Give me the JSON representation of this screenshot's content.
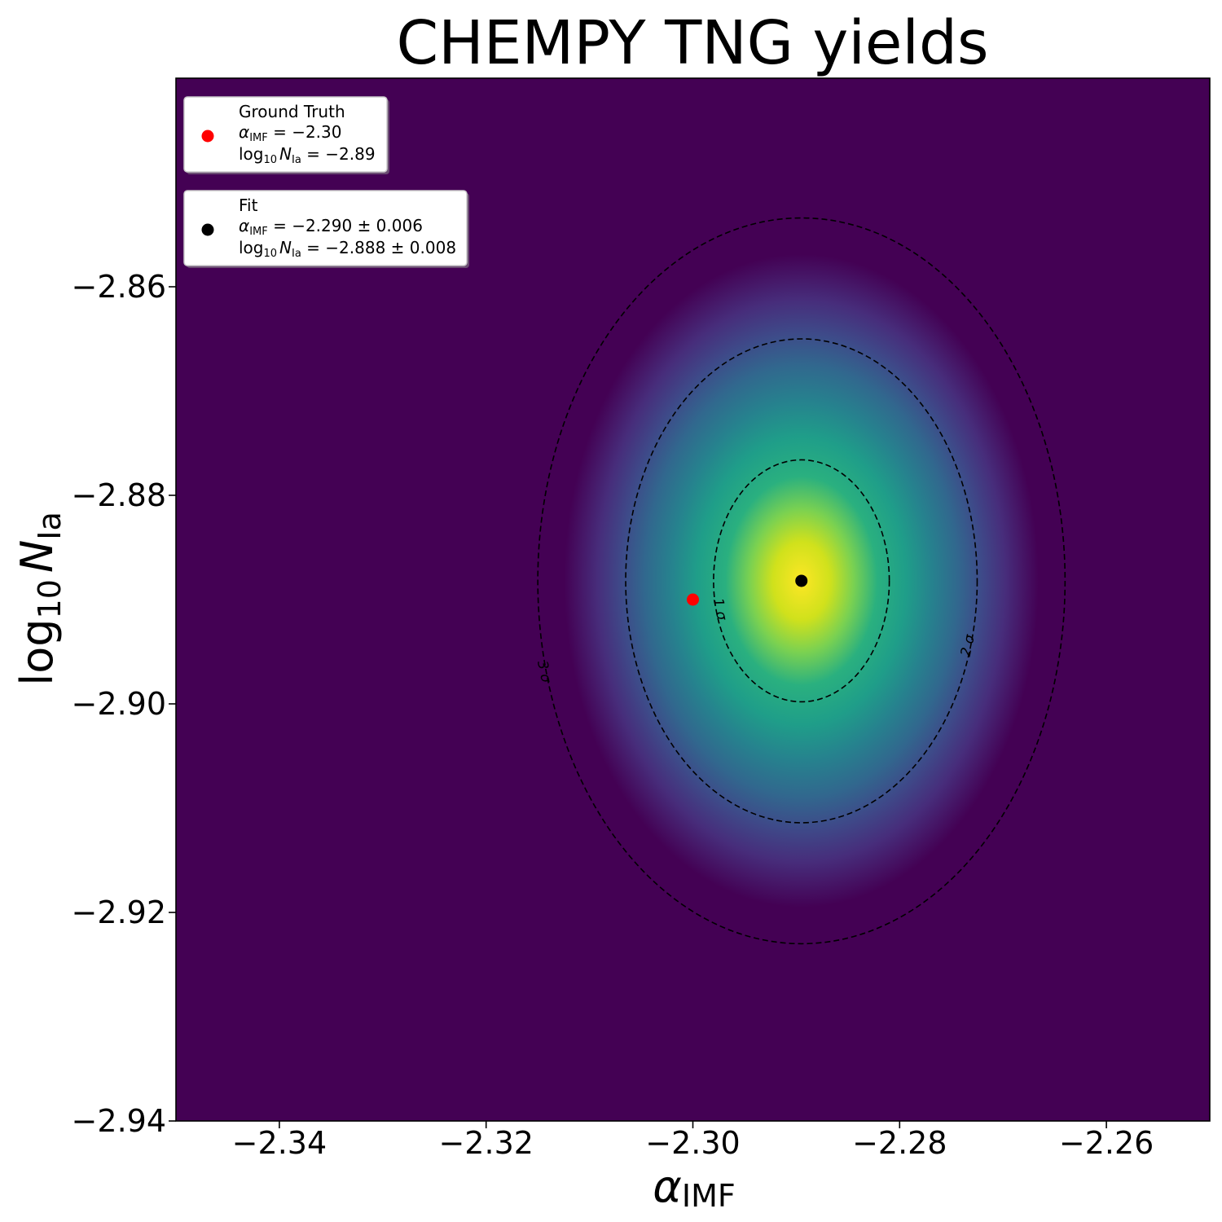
{
  "chart_data": {
    "type": "heatmap",
    "title": "CHEMPY TNG yields",
    "xlabel": {
      "base": "α",
      "sub": "IMF"
    },
    "ylabel": {
      "base": "log",
      "base_sub": "10",
      "var": "N",
      "var_sub": "Ia"
    },
    "xlim": [
      -2.35,
      -2.25
    ],
    "ylim": [
      -2.94,
      -2.84
    ],
    "x_ticks": [
      -2.34,
      -2.32,
      -2.3,
      -2.28,
      -2.26
    ],
    "x_tick_labels": [
      "−2.34",
      "−2.32",
      "−2.30",
      "−2.28",
      "−2.26"
    ],
    "y_ticks": [
      -2.86,
      -2.88,
      -2.9,
      -2.92,
      -2.94
    ],
    "y_tick_labels": [
      "−2.86",
      "−2.88",
      "−2.90",
      "−2.92",
      "−2.94"
    ],
    "grid": false,
    "colormap": "viridis",
    "background_color": "#440154",
    "density": {
      "center": [
        -2.2895,
        -2.8882
      ],
      "sigma": [
        0.0085,
        0.0116
      ]
    },
    "contours": [
      {
        "label": "1 σ",
        "level": 1,
        "label_at": {
          "x": -2.2978,
          "y": -2.891
        }
      },
      {
        "label": "2 σ",
        "level": 2,
        "label_at": {
          "x": -2.273,
          "y": -2.8945
        }
      },
      {
        "label": "3 σ",
        "level": 3,
        "label_at": {
          "x": -2.3148,
          "y": -2.897
        }
      }
    ],
    "points": [
      {
        "name": "ground-truth",
        "x": -2.3,
        "y": -2.89,
        "color": "#ff0000"
      },
      {
        "name": "fit",
        "x": -2.2895,
        "y": -2.8882,
        "color": "#000000"
      }
    ],
    "legends": [
      {
        "marker_color": "#ff0000",
        "title": "Ground Truth",
        "line1": {
          "sym": "α",
          "sub": "IMF",
          "rest": " = −2.30"
        },
        "line2": {
          "pre": "log",
          "pre_sub": "10",
          "sym": "N",
          "sub": "Ia",
          "rest": " = −2.89"
        }
      },
      {
        "marker_color": "#000000",
        "title": "Fit",
        "line1": {
          "sym": "α",
          "sub": "IMF",
          "rest": " = −2.290 ± 0.006"
        },
        "line2": {
          "pre": "log",
          "pre_sub": "10",
          "sym": "N",
          "sub": "Ia",
          "rest": " = −2.888 ± 0.008"
        }
      }
    ]
  }
}
